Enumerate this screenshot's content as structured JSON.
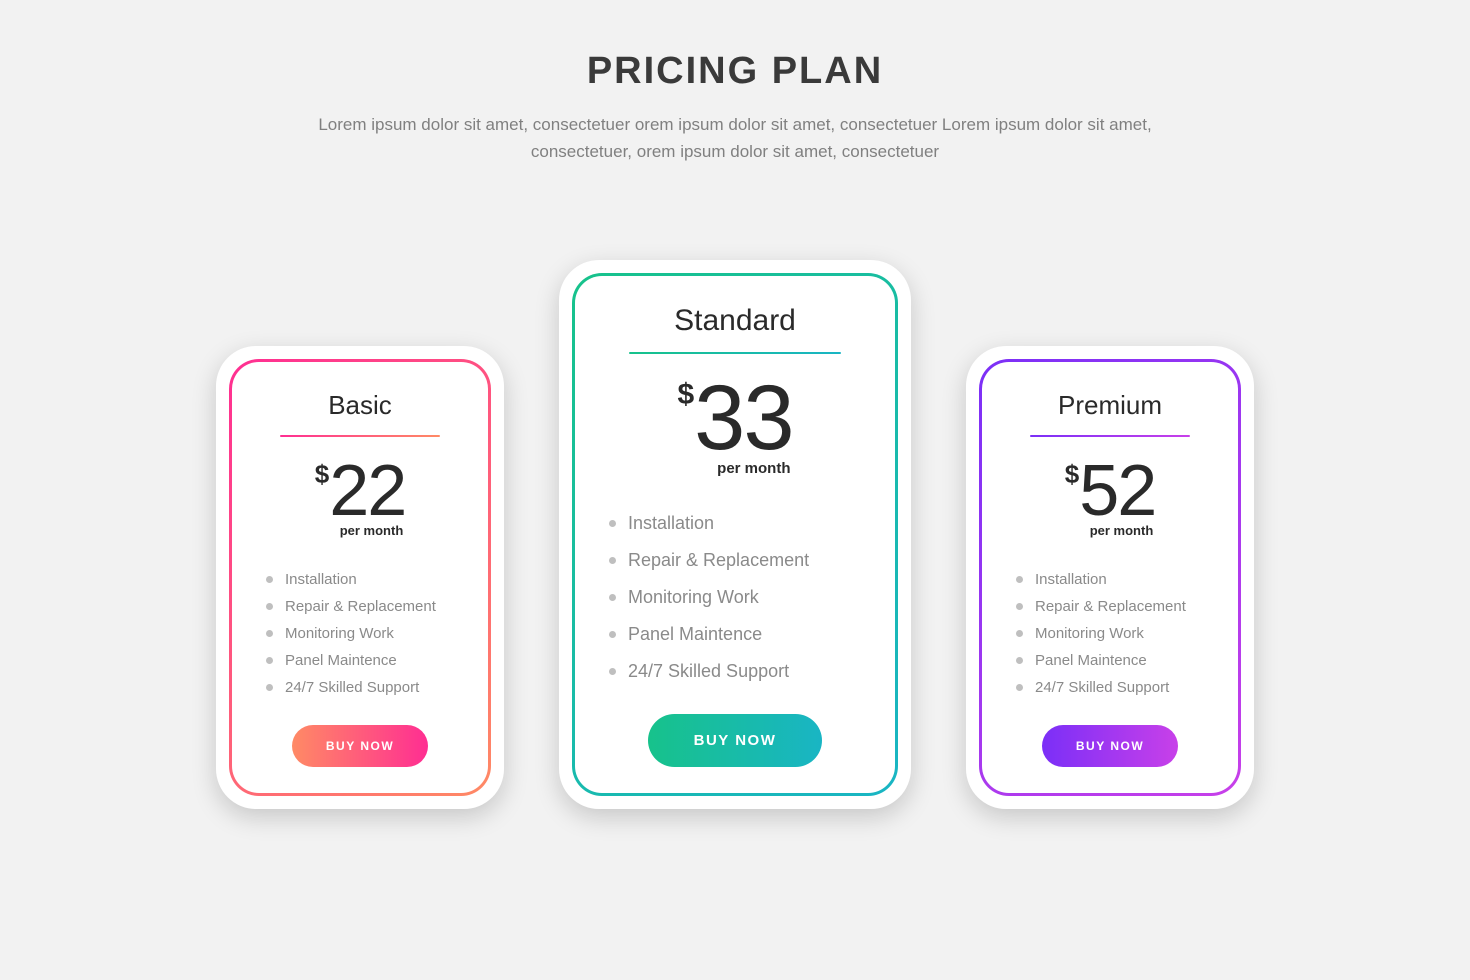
{
  "background_color": "#f2f2f2",
  "header": {
    "title": "PRICING PLAN",
    "title_color": "#3a3a3a",
    "title_fontsize": 38,
    "subtitle": "Lorem ipsum dolor sit amet, consectetuer orem ipsum dolor sit amet, consectetuer Lorem ipsum dolor sit amet, consectetuer, orem ipsum dolor sit amet, consectetuer",
    "subtitle_color": "#808080",
    "subtitle_fontsize": 17
  },
  "common": {
    "currency": "$",
    "period": "per month",
    "buy_label": "BUY NOW",
    "card_bg": "#ffffff",
    "card_radius": 40,
    "inner_radius": 30,
    "feature_color": "#8a8a8a",
    "bullet_color": "#bfbfbf",
    "button_text_color": "#ffffff"
  },
  "plans": [
    {
      "name": "Basic",
      "price": "22",
      "size": "small",
      "gradient_from": "#ff2e92",
      "gradient_to": "#ff8a65",
      "rule_from": "#ff2e92",
      "rule_to": "#ff8a65",
      "button_from": "#ff8a65",
      "button_to": "#ff2e92",
      "features": [
        "Installation",
        "Repair & Replacement",
        "Monitoring Work",
        "Panel Maintence",
        "24/7 Skilled Support"
      ]
    },
    {
      "name": "Standard",
      "price": "33",
      "size": "large",
      "gradient_from": "#17c28b",
      "gradient_to": "#19b5c4",
      "rule_from": "#17c28b",
      "rule_to": "#19b5c4",
      "button_from": "#17c28b",
      "button_to": "#19b5c4",
      "features": [
        "Installation",
        "Repair & Replacement",
        "Monitoring Work",
        "Panel Maintence",
        "24/7 Skilled Support"
      ]
    },
    {
      "name": "Premium",
      "price": "52",
      "size": "small",
      "gradient_from": "#7b2ff7",
      "gradient_to": "#c840e9",
      "rule_from": "#7b2ff7",
      "rule_to": "#c840e9",
      "button_from": "#7b2ff7",
      "button_to": "#c840e9",
      "features": [
        "Installation",
        "Repair & Replacement",
        "Monitoring Work",
        "Panel Maintence",
        "24/7 Skilled Support"
      ]
    }
  ]
}
